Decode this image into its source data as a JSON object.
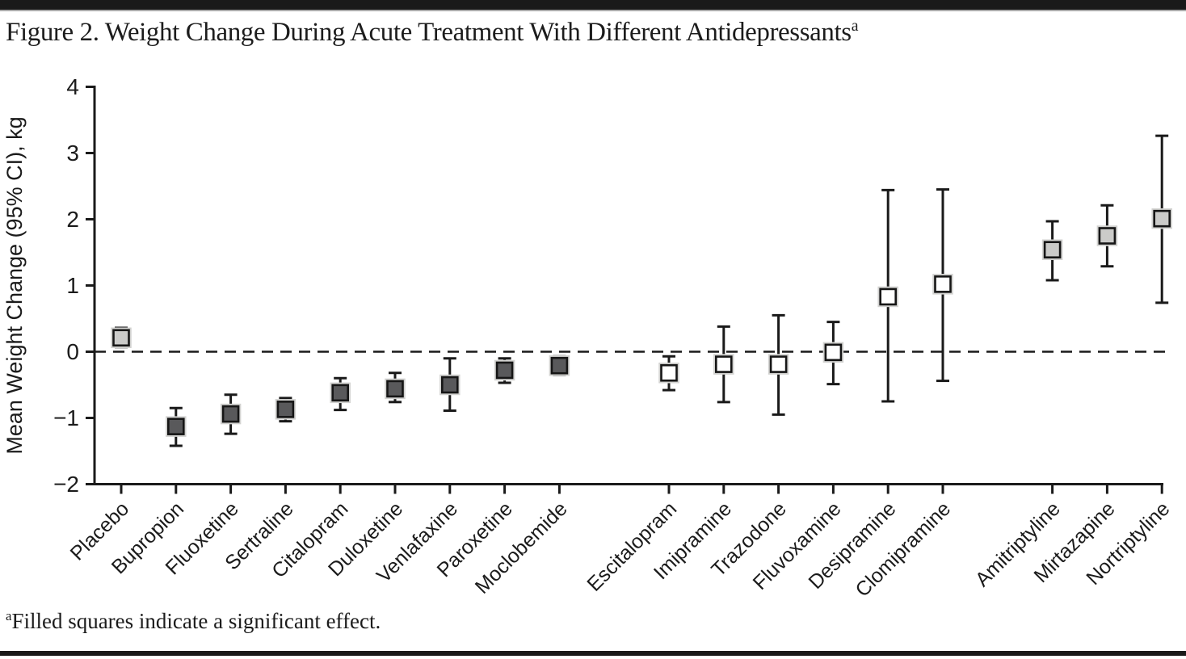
{
  "figure": {
    "title": "Figure 2. Weight Change During Acute Treatment With Different Antidepressants",
    "title_superscript": "a",
    "footnote_marker": "a",
    "footnote_text": "Filled squares indicate a significant effect."
  },
  "chart_data": {
    "type": "scatter",
    "subtype": "point-estimate-with-95ci-error-bars",
    "title": "Figure 2. Weight Change During Acute Treatment With Different Antidepressants",
    "ylabel": "Mean Weight Change (95% CI), kg",
    "xlabel": "",
    "ylim": [
      -2,
      4
    ],
    "yticks": [
      4,
      3,
      2,
      1,
      0,
      -1,
      -2
    ],
    "zero_reference_line": 0,
    "grid": false,
    "legend_position": "none",
    "colors": {
      "filled-light": "#cbcbc9",
      "filled-dark": "#59595b",
      "open": "#ffffff",
      "stroke": "#1a1a1a",
      "halo": "#d2d2d0"
    },
    "group_gap_after": [
      "Moclobemide",
      "Clomipramine"
    ],
    "series": [
      {
        "label": "Placebo",
        "mean": 0.21,
        "ci_low": 0.07,
        "ci_high": 0.36,
        "style": "filled-light",
        "significant": true
      },
      {
        "label": "Bupropion",
        "mean": -1.13,
        "ci_low": -1.42,
        "ci_high": -0.85,
        "style": "filled-dark",
        "significant": true
      },
      {
        "label": "Fluoxetine",
        "mean": -0.94,
        "ci_low": -1.24,
        "ci_high": -0.65,
        "style": "filled-dark",
        "significant": true
      },
      {
        "label": "Sertraline",
        "mean": -0.87,
        "ci_low": -1.05,
        "ci_high": -0.7,
        "style": "filled-dark",
        "significant": true
      },
      {
        "label": "Citalopram",
        "mean": -0.62,
        "ci_low": -0.88,
        "ci_high": -0.4,
        "style": "filled-dark",
        "significant": true
      },
      {
        "label": "Duloxetine",
        "mean": -0.56,
        "ci_low": -0.76,
        "ci_high": -0.32,
        "style": "filled-dark",
        "significant": true
      },
      {
        "label": "Venlafaxine",
        "mean": -0.5,
        "ci_low": -0.89,
        "ci_high": -0.1,
        "style": "filled-dark",
        "significant": true
      },
      {
        "label": "Paroxetine",
        "mean": -0.28,
        "ci_low": -0.47,
        "ci_high": -0.1,
        "style": "filled-dark",
        "significant": true
      },
      {
        "label": "Moclobemide",
        "mean": -0.21,
        "ci_low": -0.35,
        "ci_high": -0.07,
        "style": "filled-dark",
        "significant": true
      },
      {
        "label": "Escitalopram",
        "mean": -0.32,
        "ci_low": -0.58,
        "ci_high": -0.07,
        "style": "open",
        "significant": false
      },
      {
        "label": "Imipramine",
        "mean": -0.19,
        "ci_low": -0.76,
        "ci_high": 0.38,
        "style": "open",
        "significant": false
      },
      {
        "label": "Trazodone",
        "mean": -0.19,
        "ci_low": -0.95,
        "ci_high": 0.55,
        "style": "open",
        "significant": false
      },
      {
        "label": "Fluvoxamine",
        "mean": -0.01,
        "ci_low": -0.49,
        "ci_high": 0.45,
        "style": "open",
        "significant": false
      },
      {
        "label": "Desipramine",
        "mean": 0.83,
        "ci_low": -0.75,
        "ci_high": 2.44,
        "style": "open",
        "significant": false
      },
      {
        "label": "Clomipramine",
        "mean": 1.02,
        "ci_low": -0.44,
        "ci_high": 2.45,
        "style": "open",
        "significant": false
      },
      {
        "label": "Amitriptyline",
        "mean": 1.54,
        "ci_low": 1.08,
        "ci_high": 1.97,
        "style": "filled-light",
        "significant": true
      },
      {
        "label": "Mirtazapine",
        "mean": 1.75,
        "ci_low": 1.29,
        "ci_high": 2.21,
        "style": "filled-light",
        "significant": true
      },
      {
        "label": "Nortriptyline",
        "mean": 2.01,
        "ci_low": 0.74,
        "ci_high": 3.26,
        "style": "filled-light",
        "significant": true
      }
    ]
  }
}
